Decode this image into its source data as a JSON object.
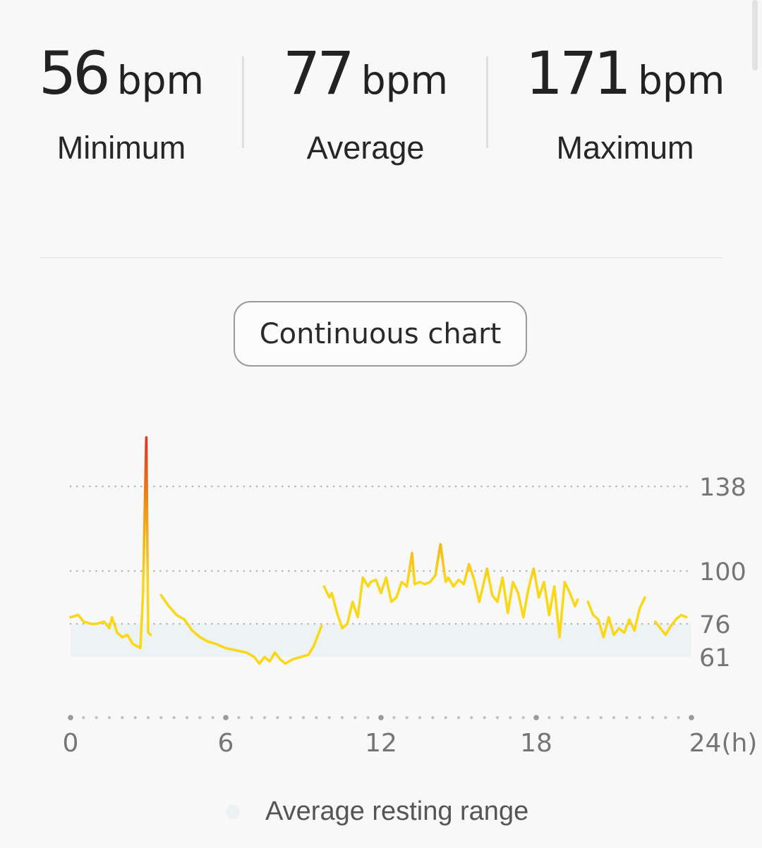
{
  "stats": {
    "minimum": {
      "value": "56",
      "unit": "bpm",
      "label": "Minimum"
    },
    "average": {
      "value": "77",
      "unit": "bpm",
      "label": "Average"
    },
    "maximum": {
      "value": "171",
      "unit": "bpm",
      "label": "Maximum"
    }
  },
  "chart_toggle_label": "Continuous chart",
  "legend": {
    "resting_range_label": "Average resting range"
  },
  "colors": {
    "line_low": "#f9d819",
    "line_mid": "#f0a019",
    "line_high": "#e0391f",
    "resting_band": "#edf2f4"
  },
  "chart_data": {
    "type": "line",
    "x_unit": "(h)",
    "xlim": [
      0,
      24
    ],
    "x_ticks": [
      0,
      6,
      12,
      18,
      24
    ],
    "x_tick_labels": [
      "0",
      "6",
      "12",
      "18",
      "24(h)"
    ],
    "y_ticks": [
      61,
      76,
      100,
      138
    ],
    "y_tick_labels": [
      "61",
      "76",
      "100",
      "138"
    ],
    "resting_range": [
      61,
      76
    ],
    "grid": "dotted horizontal at 76, 100, 138",
    "series": [
      {
        "segments": [
          [
            [
              0.0,
              79
            ],
            [
              0.3,
              80
            ],
            [
              0.5,
              77
            ],
            [
              0.8,
              76
            ],
            [
              1.0,
              76
            ],
            [
              1.3,
              77
            ],
            [
              1.5,
              74
            ],
            [
              1.6,
              79
            ],
            [
              1.8,
              72
            ],
            [
              2.0,
              70
            ],
            [
              2.2,
              71
            ],
            [
              2.4,
              67
            ],
            [
              2.7,
              65
            ],
            [
              2.8,
              90
            ],
            [
              2.93,
              160
            ],
            [
              3.0,
              72
            ],
            [
              3.1,
              71
            ]
          ],
          [
            [
              3.5,
              89
            ],
            [
              3.8,
              84
            ],
            [
              4.1,
              80
            ],
            [
              4.4,
              78
            ],
            [
              4.7,
              73
            ],
            [
              5.0,
              70
            ],
            [
              5.3,
              68
            ],
            [
              5.6,
              67
            ],
            [
              6.0,
              65
            ],
            [
              6.4,
              64
            ],
            [
              6.8,
              63
            ],
            [
              7.1,
              61
            ],
            [
              7.3,
              58
            ],
            [
              7.5,
              61
            ],
            [
              7.7,
              59
            ],
            [
              7.9,
              63
            ],
            [
              8.1,
              60
            ],
            [
              8.3,
              58
            ],
            [
              8.6,
              60
            ],
            [
              8.9,
              61
            ],
            [
              9.2,
              62
            ],
            [
              9.4,
              66
            ],
            [
              9.7,
              75
            ]
          ],
          [
            [
              9.8,
              93
            ],
            [
              10.0,
              88
            ],
            [
              10.1,
              90
            ],
            [
              10.3,
              81
            ],
            [
              10.5,
              74
            ],
            [
              10.7,
              76
            ],
            [
              10.9,
              86
            ],
            [
              11.1,
              79
            ],
            [
              11.3,
              97
            ],
            [
              11.5,
              93
            ],
            [
              11.6,
              95
            ],
            [
              11.8,
              96
            ],
            [
              12.0,
              90
            ],
            [
              12.2,
              97
            ],
            [
              12.4,
              86
            ],
            [
              12.6,
              88
            ],
            [
              12.8,
              95
            ],
            [
              13.0,
              93
            ],
            [
              13.2,
              108
            ],
            [
              13.3,
              94
            ],
            [
              13.5,
              95
            ],
            [
              13.7,
              94
            ],
            [
              13.9,
              95
            ],
            [
              14.1,
              98
            ],
            [
              14.3,
              112
            ],
            [
              14.5,
              95
            ],
            [
              14.6,
              97
            ],
            [
              14.8,
              93
            ],
            [
              15.0,
              96
            ],
            [
              15.2,
              94
            ],
            [
              15.4,
              103
            ],
            [
              15.6,
              96
            ],
            [
              15.8,
              86
            ],
            [
              16.0,
              96
            ],
            [
              16.1,
              101
            ],
            [
              16.3,
              89
            ],
            [
              16.5,
              86
            ],
            [
              16.7,
              97
            ],
            [
              16.9,
              81
            ],
            [
              17.1,
              95
            ],
            [
              17.3,
              90
            ],
            [
              17.5,
              79
            ],
            [
              17.7,
              92
            ],
            [
              17.9,
              101
            ],
            [
              18.1,
              88
            ],
            [
              18.3,
              95
            ],
            [
              18.5,
              80
            ],
            [
              18.7,
              93
            ],
            [
              18.9,
              70
            ],
            [
              19.1,
              95
            ],
            [
              19.3,
              90
            ],
            [
              19.5,
              84
            ],
            [
              19.6,
              87
            ]
          ],
          [
            [
              20.0,
              86
            ],
            [
              20.2,
              80
            ],
            [
              20.4,
              78
            ],
            [
              20.6,
              70
            ],
            [
              20.8,
              79
            ],
            [
              21.0,
              71
            ],
            [
              21.2,
              74
            ],
            [
              21.4,
              72
            ],
            [
              21.6,
              78
            ],
            [
              21.8,
              73
            ],
            [
              22.0,
              83
            ],
            [
              22.2,
              88
            ]
          ],
          [
            [
              22.6,
              77
            ],
            [
              23.0,
              71
            ],
            [
              23.2,
              75
            ],
            [
              23.4,
              78
            ],
            [
              23.6,
              80
            ],
            [
              23.8,
              79
            ]
          ]
        ]
      }
    ]
  }
}
